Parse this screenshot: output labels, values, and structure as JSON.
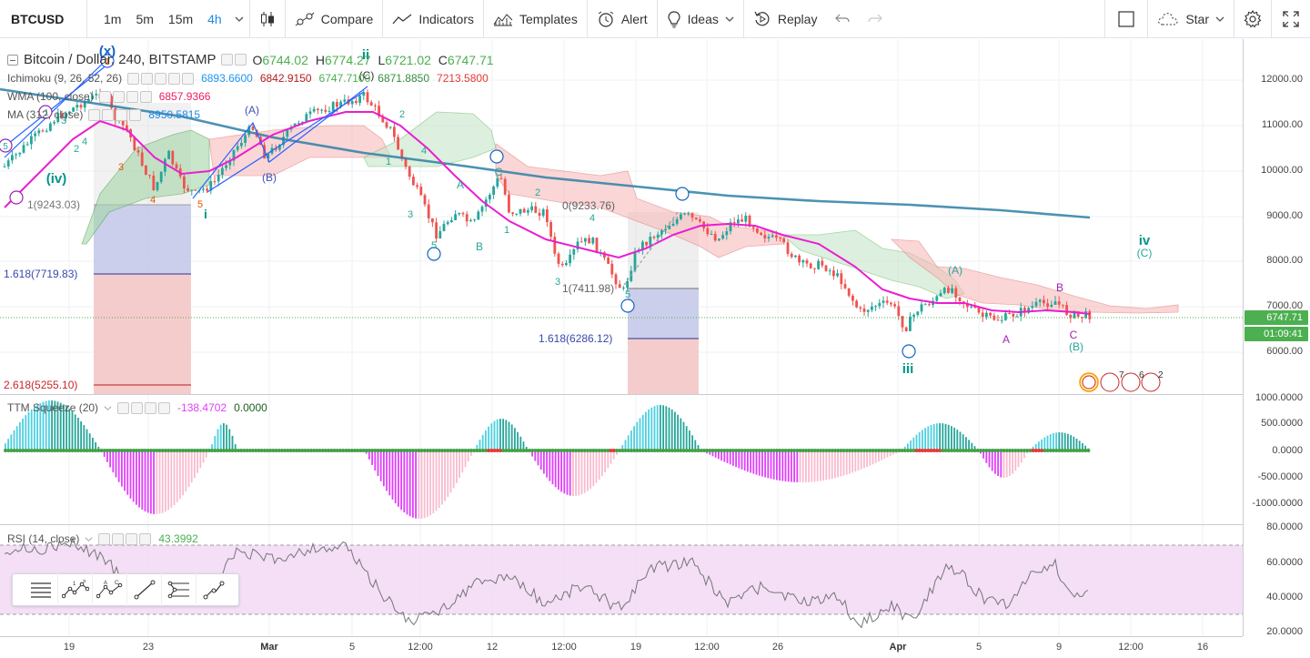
{
  "toolbar": {
    "symbol": "BTCUSD",
    "intervals": [
      "1m",
      "5m",
      "15m",
      "4h"
    ],
    "active_interval": "4h",
    "compare": "Compare",
    "indicators": "Indicators",
    "templates": "Templates",
    "alert": "Alert",
    "ideas": "Ideas",
    "replay": "Replay",
    "star": "Star"
  },
  "main_legend": {
    "title": "Bitcoin / Dollar, 240, BITSTAMP",
    "open_label": "O",
    "open": "6744.02",
    "high_label": "H",
    "high": "6774.27",
    "low_label": "L",
    "low": "6721.02",
    "close_label": "C",
    "close": "6747.71"
  },
  "indicators": [
    {
      "name": "Ichimoku (9, 26, 52, 26)",
      "values": [
        "6893.6600",
        "6842.9150",
        "6747.7100",
        "6871.8850",
        "7213.5800"
      ],
      "colors": [
        "#2196f3",
        "#b71c1c",
        "#4caf50",
        "#388e3c",
        "#e53935"
      ]
    },
    {
      "name": "WMA (100, close)",
      "values": [
        "6857.9366"
      ],
      "colors": [
        "#e91e63"
      ]
    },
    {
      "name": "MA (312, close)",
      "values": [
        "8950.5815"
      ],
      "colors": [
        "#1e88e5"
      ]
    }
  ],
  "ttm": {
    "name": "TTM Squeeze (20)",
    "values": [
      "-138.4702",
      "0.0000"
    ],
    "colors": [
      "#e040fb",
      "#1b5e20"
    ]
  },
  "rsi": {
    "name": "RSI (14, close)",
    "value": "43.3992"
  },
  "price_axis": {
    "main": [
      "12000.00",
      "11000.00",
      "10000.00",
      "9000.00",
      "8000.00",
      "7000.00",
      "6000.00"
    ],
    "last_price": "6747.71",
    "countdown": "01:09:41",
    "ttm": [
      "1000.0000",
      "500.0000",
      "0.0000",
      "-500.0000",
      "-1000.0000"
    ],
    "rsi": [
      "80.0000",
      "60.0000",
      "40.0000",
      "20.0000"
    ]
  },
  "time_axis": [
    {
      "label": "19",
      "bold": false
    },
    {
      "label": "23",
      "bold": false
    },
    {
      "label": "Mar",
      "bold": true
    },
    {
      "label": "5",
      "bold": false
    },
    {
      "label": "12:00",
      "bold": false
    },
    {
      "label": "12",
      "bold": false
    },
    {
      "label": "12:00",
      "bold": false
    },
    {
      "label": "19",
      "bold": false
    },
    {
      "label": "12:00",
      "bold": false
    },
    {
      "label": "26",
      "bold": false
    },
    {
      "label": "Apr",
      "bold": true
    },
    {
      "label": "5",
      "bold": false
    },
    {
      "label": "9",
      "bold": false
    },
    {
      "label": "12:00",
      "bold": false
    },
    {
      "label": "16",
      "bold": false
    }
  ],
  "fib_labels": [
    "1(9243.03)",
    "1.618(7719.83)",
    "2.618(5255.10)",
    "0(9233.76)",
    "1(7411.98)",
    "1.618(6286.12)"
  ],
  "wave_labels": {
    "big": [
      "(x)",
      "ii",
      "(iv)",
      "iii",
      "iv"
    ],
    "small": [
      "(C)",
      "(A)",
      "(B)",
      "(A)",
      "(B)",
      "(C)",
      "A",
      "B",
      "C",
      "A",
      "B",
      "C"
    ],
    "nums": [
      "1",
      "2",
      "3",
      "4",
      "5",
      "1",
      "2",
      "3",
      "4",
      "5",
      "1",
      "2",
      "3",
      "4",
      "5",
      "1",
      "2",
      "3",
      "4",
      "5",
      "i"
    ]
  },
  "event_badges": [
    "7",
    "6",
    "2"
  ]
}
